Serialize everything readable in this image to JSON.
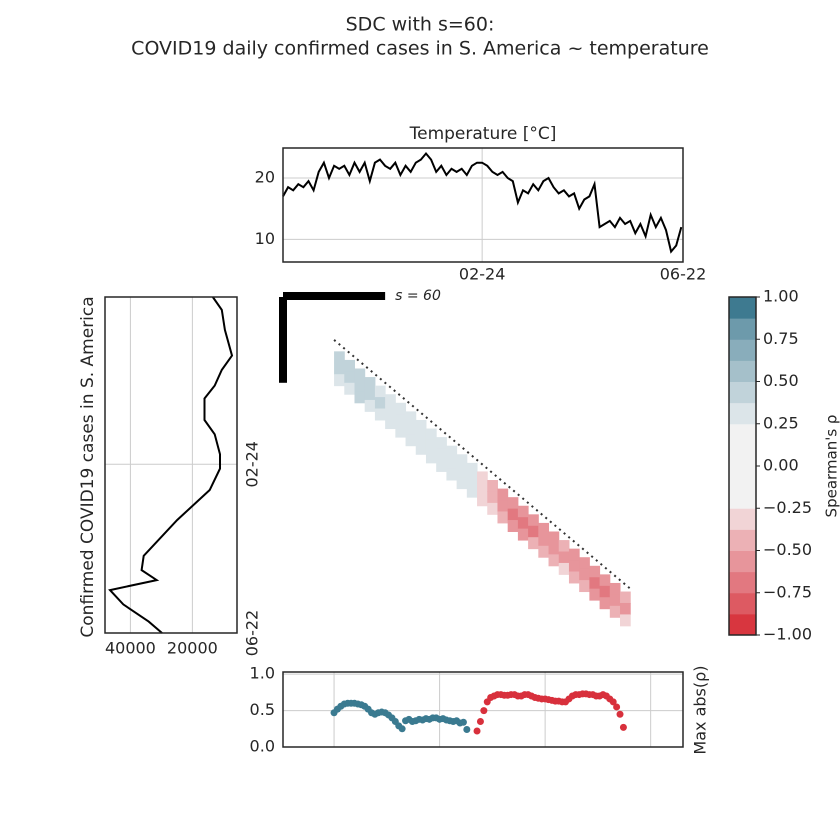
{
  "title": [
    "SDC with s=60:",
    "COVID19 daily confirmed cases in S. America ~ temperature"
  ],
  "chart_data": [
    {
      "type": "line",
      "title": "Temperature [°C]",
      "x": [
        0,
        3,
        6,
        9,
        12,
        15,
        18,
        21,
        24,
        27,
        30,
        33,
        36,
        39,
        42,
        45,
        48,
        51,
        54,
        57,
        60,
        63,
        66,
        69,
        72,
        75,
        78,
        81,
        84,
        87,
        90,
        93,
        96,
        99,
        102,
        105,
        108,
        111,
        114,
        117,
        120,
        123,
        126,
        129,
        132,
        135,
        138,
        141,
        144,
        147,
        150,
        153,
        156,
        159,
        162,
        165,
        168,
        171,
        174,
        177,
        180,
        183,
        186,
        189,
        192,
        195,
        198,
        201,
        204,
        207,
        210,
        213,
        216,
        219,
        222,
        225,
        228,
        231,
        234
      ],
      "series": [
        {
          "color": "#000000",
          "values": [
            17,
            18.5,
            18,
            19,
            18.5,
            19.5,
            18,
            21,
            22.5,
            20,
            22,
            21.5,
            22,
            20.5,
            22.5,
            21,
            22.5,
            19.5,
            22.5,
            23,
            22,
            21.5,
            22.5,
            20.5,
            22,
            21,
            22.5,
            23,
            24,
            23,
            21,
            22,
            20.5,
            21.5,
            21,
            21.5,
            20.5,
            22,
            22.5,
            22.5,
            22,
            21,
            20.5,
            21,
            20,
            19.5,
            16,
            18,
            17.5,
            19,
            18,
            19.5,
            20,
            18.5,
            17.5,
            18,
            17,
            17.5,
            15,
            16.5,
            17,
            19,
            12,
            12.5,
            13,
            12,
            13.5,
            12.5,
            13,
            11,
            12.5,
            10.5,
            14,
            12,
            13.5,
            11.5,
            8,
            9,
            12
          ]
        }
      ],
      "xlim": [
        0,
        235
      ],
      "xticks": [
        {
          "value": 117,
          "label": "02-24"
        },
        {
          "value": 235,
          "label": "06-22"
        }
      ],
      "ylim": [
        6.3,
        24.9
      ],
      "yticks": [
        10,
        20
      ],
      "grid": true
    },
    {
      "type": "vline",
      "label": "Confirmed COVID19 cases in S. America",
      "y": [
        0,
        9,
        23,
        41,
        51,
        62,
        71,
        86,
        96,
        110,
        120,
        135,
        156,
        181,
        191,
        198,
        205,
        215,
        227,
        235
      ],
      "series": [
        {
          "color": "#000000",
          "values": [
            13400,
            10500,
            9500,
            7200,
            10500,
            12800,
            16100,
            16100,
            12800,
            11100,
            11100,
            14400,
            24900,
            35700,
            36400,
            31500,
            46600,
            42300,
            34100,
            29800
          ]
        }
      ],
      "xlim": [
        48200,
        5600
      ],
      "xticks": [
        40000,
        20000
      ],
      "ylim": [
        0,
        235
      ],
      "yticks": [
        {
          "value": 117,
          "label": "02-24"
        },
        {
          "value": 235,
          "label": "06-22"
        }
      ],
      "grid": true
    },
    {
      "type": "heatmap",
      "x": [
        30,
        36,
        42,
        48,
        54,
        60,
        66,
        72,
        78,
        84,
        90,
        96,
        102,
        108,
        114,
        120,
        126,
        132,
        138,
        144,
        150,
        156,
        162,
        168,
        174,
        180,
        186,
        192,
        198
      ],
      "lags": [
        8,
        16,
        24
      ],
      "values": [
        [
          0.45,
          0.4,
          0.3
        ],
        [
          0.5,
          0.45,
          0.35
        ],
        [
          0.45,
          0.5,
          0.4
        ],
        [
          0.4,
          0.45,
          0.35
        ],
        [
          0.35,
          0.4,
          0.3
        ],
        [
          0.3,
          0.35,
          0.3
        ],
        [
          0.26,
          0.28,
          0.26
        ],
        [
          0.3,
          0.35,
          0.3
        ],
        [
          0.32,
          0.36,
          0.3
        ],
        [
          0.3,
          0.33,
          0.28
        ],
        [
          0.28,
          0.3,
          0.27
        ],
        [
          0.3,
          0.28,
          0.26
        ],
        [
          0.28,
          0.3,
          0.27
        ],
        [
          0.27,
          0.28,
          0.26
        ],
        [
          -0.3,
          -0.35,
          -0.3
        ],
        [
          -0.4,
          -0.45,
          -0.35
        ],
        [
          -0.5,
          -0.6,
          -0.45
        ],
        [
          -0.55,
          -0.65,
          -0.5
        ],
        [
          -0.6,
          -0.7,
          -0.5
        ],
        [
          -0.6,
          -0.65,
          -0.45
        ],
        [
          -0.55,
          -0.6,
          -0.4
        ],
        [
          -0.5,
          -0.55,
          -0.4
        ],
        [
          -0.45,
          -0.5,
          -0.35
        ],
        [
          -0.5,
          -0.55,
          -0.4
        ],
        [
          -0.55,
          -0.6,
          -0.45
        ],
        [
          -0.6,
          -0.65,
          -0.5
        ],
        [
          -0.6,
          -0.7,
          -0.5
        ],
        [
          -0.55,
          -0.6,
          -0.45
        ],
        [
          -0.45,
          -0.5,
          -0.35
        ]
      ],
      "xlim": [
        0,
        235
      ],
      "ylim": [
        0,
        235
      ],
      "window": 60,
      "window_label": "s = 60",
      "diagonal": [
        30,
        205
      ]
    },
    {
      "type": "colorbar",
      "label": "Spearman's ρ",
      "lim": [
        -1,
        1
      ],
      "boundaries": [
        -1,
        -0.875,
        -0.75,
        -0.625,
        -0.5,
        -0.375,
        -0.25,
        -0.125,
        0,
        0.125,
        0.25,
        0.375,
        0.5,
        0.625,
        0.75,
        0.875,
        1
      ],
      "colors": [
        "#d8363f",
        "#dd5a62",
        "#e27880",
        "#e7959b",
        "#ecb1b5",
        "#f1d4d6",
        "#f2f2f2",
        "#f2f2f2",
        "#f2f2f2",
        "#f2f2f2",
        "#dce5e9",
        "#c1d3da",
        "#a5c0ca",
        "#89adbb",
        "#6d9aab",
        "#3e7a90"
      ],
      "ticks": [
        {
          "value": 1,
          "label": "1.00"
        },
        {
          "value": 0.75,
          "label": "0.75"
        },
        {
          "value": 0.5,
          "label": "0.50"
        },
        {
          "value": 0.25,
          "label": "0.25"
        },
        {
          "value": 0,
          "label": "0.00"
        },
        {
          "value": -0.25,
          "label": "−0.25"
        },
        {
          "value": -0.5,
          "label": "−0.50"
        },
        {
          "value": -0.75,
          "label": "−0.75"
        },
        {
          "value": -1,
          "label": "−1.00"
        }
      ]
    },
    {
      "type": "scatter",
      "ylabel": "Max abs(ρ)",
      "series": [
        {
          "color": "#3a7a90",
          "x": [
            30,
            32,
            34,
            36,
            38,
            40,
            42,
            44,
            46,
            48,
            50,
            52,
            54,
            56,
            58,
            60,
            62,
            64,
            66,
            68,
            70,
            72,
            74,
            76,
            78,
            80,
            82,
            84,
            86,
            88,
            90,
            92,
            94,
            96,
            98,
            100,
            102,
            104,
            106,
            108
          ],
          "values": [
            0.47,
            0.52,
            0.56,
            0.59,
            0.6,
            0.6,
            0.6,
            0.59,
            0.58,
            0.56,
            0.52,
            0.47,
            0.45,
            0.47,
            0.48,
            0.47,
            0.44,
            0.4,
            0.35,
            0.29,
            0.25,
            0.36,
            0.38,
            0.35,
            0.36,
            0.38,
            0.37,
            0.39,
            0.38,
            0.4,
            0.4,
            0.38,
            0.39,
            0.37,
            0.36,
            0.35,
            0.36,
            0.33,
            0.34,
            0.24
          ]
        },
        {
          "color": "#d8303c",
          "x": [
            114,
            116,
            118,
            120,
            122,
            124,
            126,
            128,
            130,
            132,
            134,
            136,
            138,
            140,
            142,
            144,
            146,
            148,
            150,
            152,
            154,
            156,
            158,
            160,
            162,
            164,
            166,
            168,
            170,
            172,
            174,
            176,
            178,
            180,
            182,
            184,
            186,
            188,
            190,
            192,
            194,
            196,
            198,
            200
          ],
          "values": [
            0.22,
            0.35,
            0.5,
            0.62,
            0.68,
            0.7,
            0.72,
            0.72,
            0.71,
            0.71,
            0.72,
            0.72,
            0.7,
            0.7,
            0.72,
            0.72,
            0.7,
            0.68,
            0.67,
            0.66,
            0.66,
            0.65,
            0.64,
            0.63,
            0.63,
            0.62,
            0.62,
            0.66,
            0.7,
            0.72,
            0.72,
            0.73,
            0.73,
            0.72,
            0.72,
            0.7,
            0.7,
            0.72,
            0.7,
            0.66,
            0.62,
            0.55,
            0.45,
            0.27
          ]
        }
      ],
      "xlim": [
        0,
        235
      ],
      "ylim": [
        0,
        1.03
      ],
      "yticks": [
        {
          "value": 0,
          "label": "0.0"
        },
        {
          "value": 0.5,
          "label": "0.5"
        },
        {
          "value": 1,
          "label": "1.0"
        }
      ],
      "xgrid": [
        30,
        92,
        154,
        216
      ],
      "grid": true
    }
  ]
}
